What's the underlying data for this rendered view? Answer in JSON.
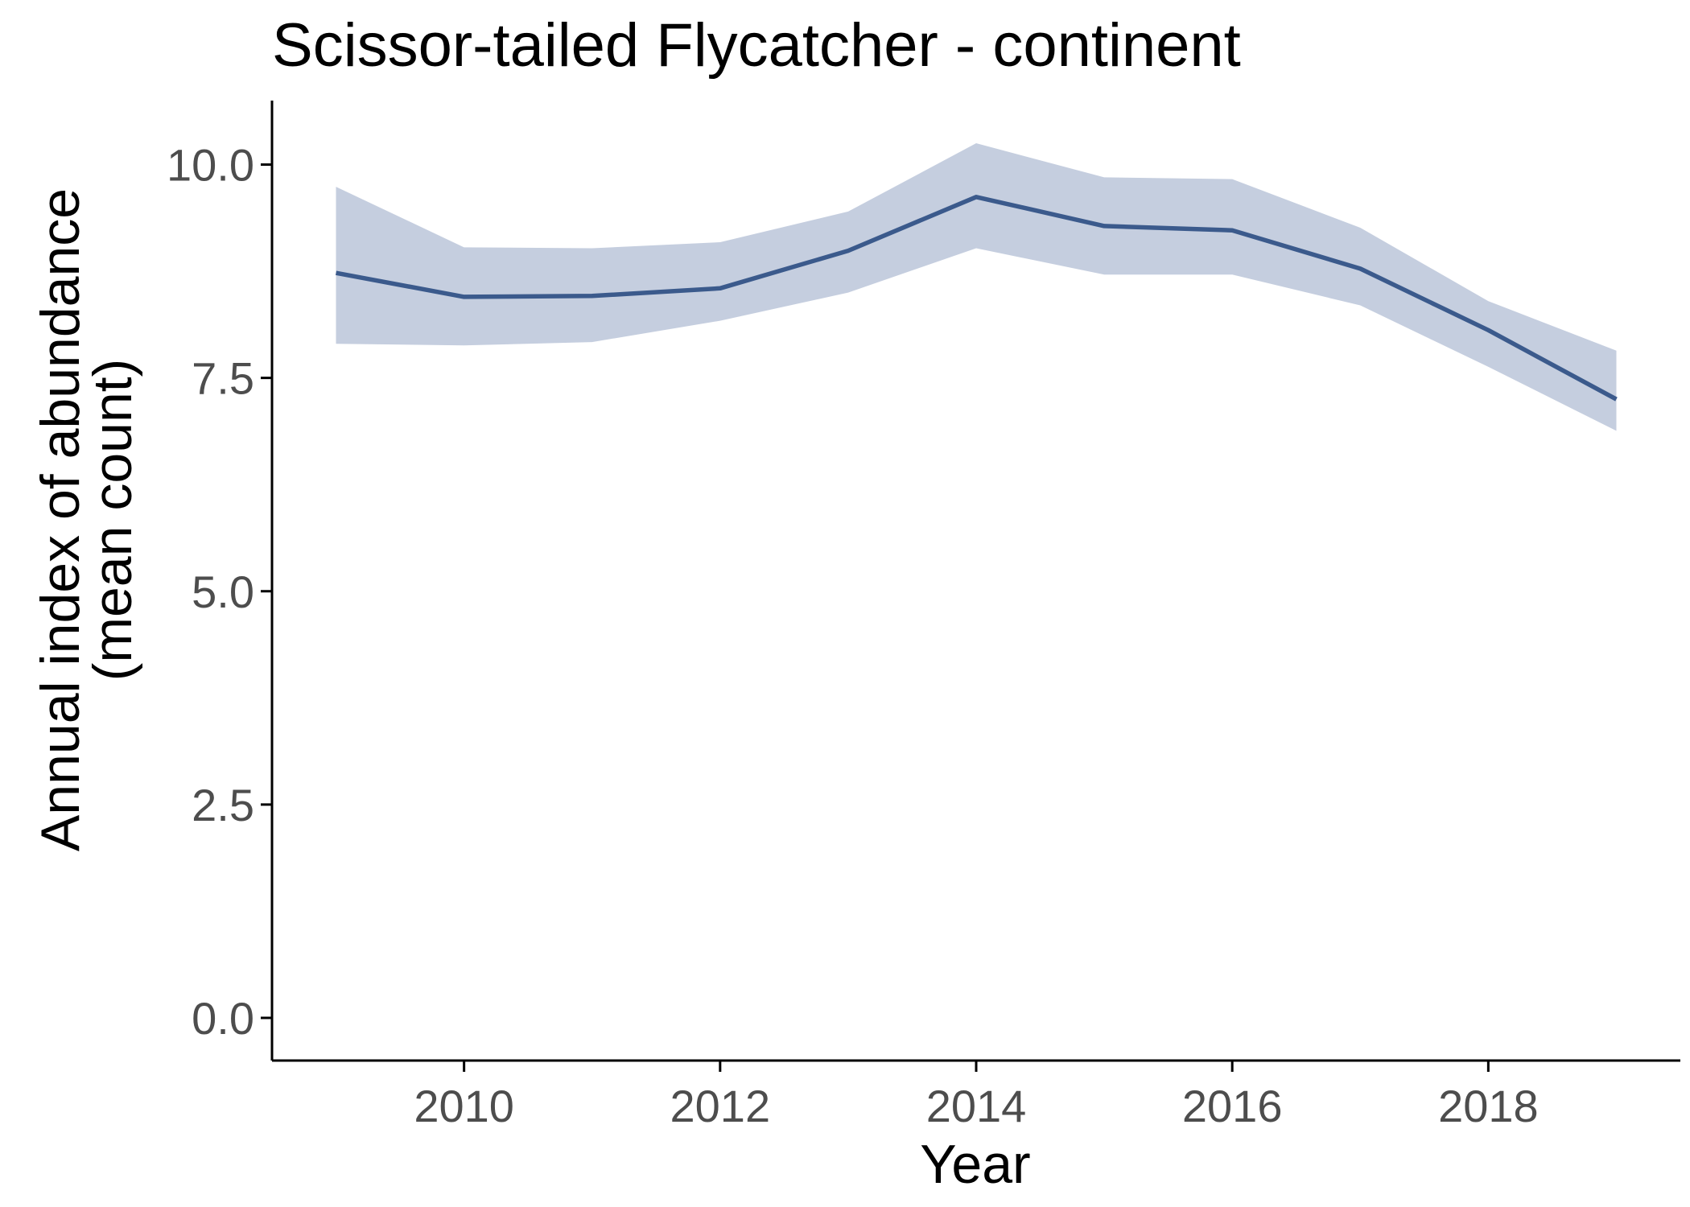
{
  "chart_data": {
    "type": "line",
    "title": "Scissor-tailed Flycatcher - continent",
    "xlabel": "Year",
    "ylabel_lines": [
      "Annual index of abundance",
      "(mean count)"
    ],
    "xlim": [
      2008.5,
      2019.5
    ],
    "ylim": [
      -0.5,
      10.75
    ],
    "x_ticks": [
      2010,
      2012,
      2014,
      2016,
      2018
    ],
    "x_tick_labels": [
      "2010",
      "2012",
      "2014",
      "2016",
      "2018"
    ],
    "y_ticks": [
      0.0,
      2.5,
      5.0,
      7.5,
      10.0
    ],
    "y_tick_labels": [
      "0.0",
      "2.5",
      "5.0",
      "7.5",
      "10.0"
    ],
    "grid": false,
    "series": [
      {
        "x": [
          2009,
          2010,
          2011,
          2012,
          2013,
          2014,
          2015,
          2016,
          2017,
          2018,
          2019
        ],
        "values": [
          8.73,
          8.45,
          8.46,
          8.55,
          8.99,
          9.62,
          9.28,
          9.23,
          8.78,
          8.06,
          7.25
        ],
        "lower": [
          7.9,
          7.88,
          7.92,
          8.17,
          8.5,
          9.02,
          8.71,
          8.71,
          8.35,
          7.63,
          6.88
        ],
        "upper": [
          9.74,
          9.03,
          9.02,
          9.09,
          9.45,
          10.25,
          9.85,
          9.83,
          9.26,
          8.4,
          7.82
        ]
      }
    ],
    "colors": {
      "line": "#3b5a8c",
      "ribbon": "#c5cedf",
      "axis": "#000000",
      "tick_label": "#4d4d4d"
    }
  }
}
